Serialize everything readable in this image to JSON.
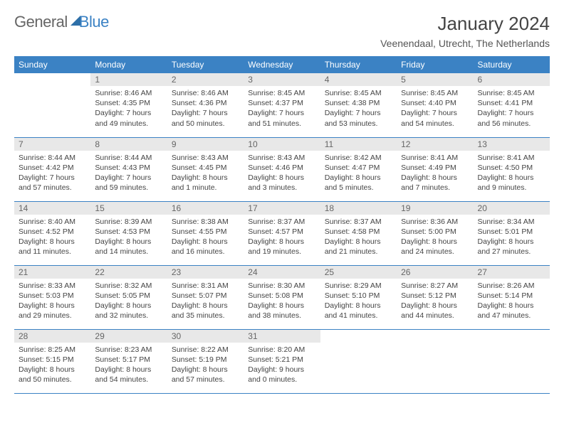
{
  "logo": {
    "text1": "General",
    "text2": "Blue"
  },
  "title": "January 2024",
  "location": "Veenendaal, Utrecht, The Netherlands",
  "dayHeaders": [
    "Sunday",
    "Monday",
    "Tuesday",
    "Wednesday",
    "Thursday",
    "Friday",
    "Saturday"
  ],
  "colors": {
    "header_bg": "#3b82c4",
    "header_fg": "#ffffff",
    "daynum_bg": "#e8e8e8",
    "rule": "#3b82c4"
  },
  "weeks": [
    [
      null,
      {
        "n": "1",
        "sr": "Sunrise: 8:46 AM",
        "ss": "Sunset: 4:35 PM",
        "d1": "Daylight: 7 hours",
        "d2": "and 49 minutes."
      },
      {
        "n": "2",
        "sr": "Sunrise: 8:46 AM",
        "ss": "Sunset: 4:36 PM",
        "d1": "Daylight: 7 hours",
        "d2": "and 50 minutes."
      },
      {
        "n": "3",
        "sr": "Sunrise: 8:45 AM",
        "ss": "Sunset: 4:37 PM",
        "d1": "Daylight: 7 hours",
        "d2": "and 51 minutes."
      },
      {
        "n": "4",
        "sr": "Sunrise: 8:45 AM",
        "ss": "Sunset: 4:38 PM",
        "d1": "Daylight: 7 hours",
        "d2": "and 53 minutes."
      },
      {
        "n": "5",
        "sr": "Sunrise: 8:45 AM",
        "ss": "Sunset: 4:40 PM",
        "d1": "Daylight: 7 hours",
        "d2": "and 54 minutes."
      },
      {
        "n": "6",
        "sr": "Sunrise: 8:45 AM",
        "ss": "Sunset: 4:41 PM",
        "d1": "Daylight: 7 hours",
        "d2": "and 56 minutes."
      }
    ],
    [
      {
        "n": "7",
        "sr": "Sunrise: 8:44 AM",
        "ss": "Sunset: 4:42 PM",
        "d1": "Daylight: 7 hours",
        "d2": "and 57 minutes."
      },
      {
        "n": "8",
        "sr": "Sunrise: 8:44 AM",
        "ss": "Sunset: 4:43 PM",
        "d1": "Daylight: 7 hours",
        "d2": "and 59 minutes."
      },
      {
        "n": "9",
        "sr": "Sunrise: 8:43 AM",
        "ss": "Sunset: 4:45 PM",
        "d1": "Daylight: 8 hours",
        "d2": "and 1 minute."
      },
      {
        "n": "10",
        "sr": "Sunrise: 8:43 AM",
        "ss": "Sunset: 4:46 PM",
        "d1": "Daylight: 8 hours",
        "d2": "and 3 minutes."
      },
      {
        "n": "11",
        "sr": "Sunrise: 8:42 AM",
        "ss": "Sunset: 4:47 PM",
        "d1": "Daylight: 8 hours",
        "d2": "and 5 minutes."
      },
      {
        "n": "12",
        "sr": "Sunrise: 8:41 AM",
        "ss": "Sunset: 4:49 PM",
        "d1": "Daylight: 8 hours",
        "d2": "and 7 minutes."
      },
      {
        "n": "13",
        "sr": "Sunrise: 8:41 AM",
        "ss": "Sunset: 4:50 PM",
        "d1": "Daylight: 8 hours",
        "d2": "and 9 minutes."
      }
    ],
    [
      {
        "n": "14",
        "sr": "Sunrise: 8:40 AM",
        "ss": "Sunset: 4:52 PM",
        "d1": "Daylight: 8 hours",
        "d2": "and 11 minutes."
      },
      {
        "n": "15",
        "sr": "Sunrise: 8:39 AM",
        "ss": "Sunset: 4:53 PM",
        "d1": "Daylight: 8 hours",
        "d2": "and 14 minutes."
      },
      {
        "n": "16",
        "sr": "Sunrise: 8:38 AM",
        "ss": "Sunset: 4:55 PM",
        "d1": "Daylight: 8 hours",
        "d2": "and 16 minutes."
      },
      {
        "n": "17",
        "sr": "Sunrise: 8:37 AM",
        "ss": "Sunset: 4:57 PM",
        "d1": "Daylight: 8 hours",
        "d2": "and 19 minutes."
      },
      {
        "n": "18",
        "sr": "Sunrise: 8:37 AM",
        "ss": "Sunset: 4:58 PM",
        "d1": "Daylight: 8 hours",
        "d2": "and 21 minutes."
      },
      {
        "n": "19",
        "sr": "Sunrise: 8:36 AM",
        "ss": "Sunset: 5:00 PM",
        "d1": "Daylight: 8 hours",
        "d2": "and 24 minutes."
      },
      {
        "n": "20",
        "sr": "Sunrise: 8:34 AM",
        "ss": "Sunset: 5:01 PM",
        "d1": "Daylight: 8 hours",
        "d2": "and 27 minutes."
      }
    ],
    [
      {
        "n": "21",
        "sr": "Sunrise: 8:33 AM",
        "ss": "Sunset: 5:03 PM",
        "d1": "Daylight: 8 hours",
        "d2": "and 29 minutes."
      },
      {
        "n": "22",
        "sr": "Sunrise: 8:32 AM",
        "ss": "Sunset: 5:05 PM",
        "d1": "Daylight: 8 hours",
        "d2": "and 32 minutes."
      },
      {
        "n": "23",
        "sr": "Sunrise: 8:31 AM",
        "ss": "Sunset: 5:07 PM",
        "d1": "Daylight: 8 hours",
        "d2": "and 35 minutes."
      },
      {
        "n": "24",
        "sr": "Sunrise: 8:30 AM",
        "ss": "Sunset: 5:08 PM",
        "d1": "Daylight: 8 hours",
        "d2": "and 38 minutes."
      },
      {
        "n": "25",
        "sr": "Sunrise: 8:29 AM",
        "ss": "Sunset: 5:10 PM",
        "d1": "Daylight: 8 hours",
        "d2": "and 41 minutes."
      },
      {
        "n": "26",
        "sr": "Sunrise: 8:27 AM",
        "ss": "Sunset: 5:12 PM",
        "d1": "Daylight: 8 hours",
        "d2": "and 44 minutes."
      },
      {
        "n": "27",
        "sr": "Sunrise: 8:26 AM",
        "ss": "Sunset: 5:14 PM",
        "d1": "Daylight: 8 hours",
        "d2": "and 47 minutes."
      }
    ],
    [
      {
        "n": "28",
        "sr": "Sunrise: 8:25 AM",
        "ss": "Sunset: 5:15 PM",
        "d1": "Daylight: 8 hours",
        "d2": "and 50 minutes."
      },
      {
        "n": "29",
        "sr": "Sunrise: 8:23 AM",
        "ss": "Sunset: 5:17 PM",
        "d1": "Daylight: 8 hours",
        "d2": "and 54 minutes."
      },
      {
        "n": "30",
        "sr": "Sunrise: 8:22 AM",
        "ss": "Sunset: 5:19 PM",
        "d1": "Daylight: 8 hours",
        "d2": "and 57 minutes."
      },
      {
        "n": "31",
        "sr": "Sunrise: 8:20 AM",
        "ss": "Sunset: 5:21 PM",
        "d1": "Daylight: 9 hours",
        "d2": "and 0 minutes."
      },
      null,
      null,
      null
    ]
  ]
}
